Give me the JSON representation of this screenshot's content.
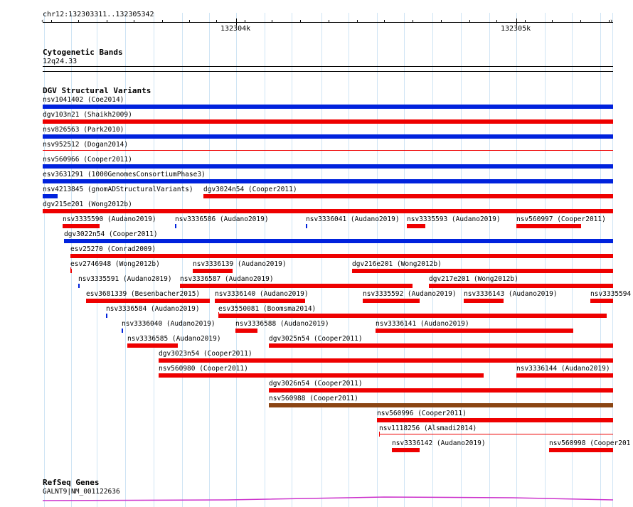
{
  "location": "chr12:132303311..132305342",
  "ruler": {
    "ticks": [
      "132304k",
      "132305k"
    ]
  },
  "colors": {
    "gridline": "#cfe4f4",
    "loss": "#ee0000",
    "gain": "#0022dd",
    "inversion": "#8b4513",
    "gene": "#cc33cc"
  },
  "cytoband": {
    "title": "Cytogenetic Bands",
    "label": "12q24.33"
  },
  "dgv": {
    "title": "DGV Structural Variants",
    "features": [
      {
        "label": "nsv1041402 (Coe2014)",
        "color": "blue"
      },
      {
        "label": "dgv103n21 (Shaikh2009)",
        "color": "red"
      },
      {
        "label": "nsv826563 (Park2010)",
        "color": "blue"
      },
      {
        "label": "nsv952512 (Dogan2014)",
        "color": "red"
      },
      {
        "label": "nsv560966 (Cooper2011)",
        "color": "blue"
      },
      {
        "label": "esv3631291 (1000GenomesConsortiumPhase3)",
        "color": "blue"
      },
      {
        "label": "nsv4213845 (gnomADStructuralVariants)",
        "color": "blue"
      },
      {
        "label": "dgv3024n54 (Cooper2011)",
        "color": "red"
      },
      {
        "label": "dgv215e201 (Wong2012b)",
        "color": "red"
      },
      {
        "label": "nsv3335590 (Audano2019)",
        "color": "red"
      },
      {
        "label": "nsv3336586 (Audano2019)",
        "color": "blue"
      },
      {
        "label": "nsv3336041 (Audano2019)",
        "color": "blue"
      },
      {
        "label": "nsv3335593 (Audano2019)",
        "color": "red"
      },
      {
        "label": "nsv560997 (Cooper2011)",
        "color": "red"
      },
      {
        "label": "dgv3022n54 (Cooper2011)",
        "color": "blue"
      },
      {
        "label": "esv25270 (Conrad2009)",
        "color": "red"
      },
      {
        "label": "esv2746948 (Wong2012b)",
        "color": "red"
      },
      {
        "label": "nsv3336139 (Audano2019)",
        "color": "red"
      },
      {
        "label": "dgv216e201 (Wong2012b)",
        "color": "red"
      },
      {
        "label": "nsv3335591 (Audano2019)",
        "color": "blue"
      },
      {
        "label": "nsv3336587 (Audano2019)",
        "color": "red"
      },
      {
        "label": "dgv217e201 (Wong2012b)",
        "color": "red"
      },
      {
        "label": "esv3681339 (Besenbacher2015)",
        "color": "red"
      },
      {
        "label": "nsv3336140 (Audano2019)",
        "color": "red"
      },
      {
        "label": "nsv3335592 (Audano2019)",
        "color": "red"
      },
      {
        "label": "nsv3336143 (Audano2019)",
        "color": "red"
      },
      {
        "label": "nsv3335594",
        "color": "red"
      },
      {
        "label": "nsv3336584 (Audano2019)",
        "color": "blue"
      },
      {
        "label": "esv3550081 (Boomsma2014)",
        "color": "red"
      },
      {
        "label": "nsv3336040 (Audano2019)",
        "color": "blue"
      },
      {
        "label": "nsv3336588 (Audano2019)",
        "color": "red"
      },
      {
        "label": "nsv3336141 (Audano2019)",
        "color": "red"
      },
      {
        "label": "nsv3336585 (Audano2019)",
        "color": "red"
      },
      {
        "label": "dgv3025n54 (Cooper2011)",
        "color": "red"
      },
      {
        "label": "dgv3023n54 (Cooper2011)",
        "color": "red"
      },
      {
        "label": "nsv560980 (Cooper2011)",
        "color": "red"
      },
      {
        "label": "nsv3336144 (Audano2019)",
        "color": "red"
      },
      {
        "label": "dgv3026n54 (Cooper2011)",
        "color": "red"
      },
      {
        "label": "nsv560988 (Cooper2011)",
        "color": "brown"
      },
      {
        "label": "nsv560996 (Cooper2011)",
        "color": "red"
      },
      {
        "label": "nsv1118256 (Alsmadi2014)",
        "color": "red"
      },
      {
        "label": "nsv3336142 (Audano2019)",
        "color": "red"
      },
      {
        "label": "nsv560998 (Cooper201",
        "color": "red"
      }
    ]
  },
  "genes": {
    "title": "RefSeq Genes",
    "label": "GALNT9|NM_001122636"
  }
}
